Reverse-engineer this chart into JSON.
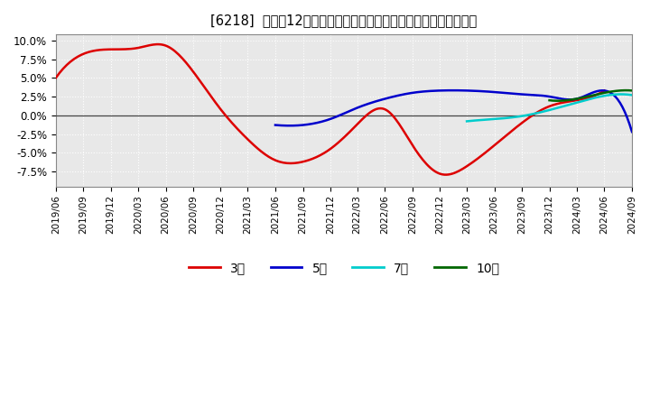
{
  "title": "[6218]  売上高12か月移動合計の対前年同期増減率の平均値の推移",
  "ylim": [
    -0.095,
    0.108
  ],
  "yticks": [
    -0.075,
    -0.05,
    -0.025,
    0.0,
    0.025,
    0.05,
    0.075,
    0.1
  ],
  "yticklabels": [
    "-7.5%",
    "-5.0%",
    "-2.5%",
    "0.0%",
    "2.5%",
    "5.0%",
    "7.5%",
    "10.0%"
  ],
  "bg_color": "#ffffff",
  "plot_bg_color": "#e8e8e8",
  "grid_color": "#ffffff",
  "series": {
    "3yr": {
      "color": "#dd0000",
      "label": "3年",
      "points": [
        [
          "2019/06",
          0.05
        ],
        [
          "2019/09",
          0.082
        ],
        [
          "2019/12",
          0.088
        ],
        [
          "2020/03",
          0.09
        ],
        [
          "2020/06",
          0.093
        ],
        [
          "2020/09",
          0.058
        ],
        [
          "2020/12",
          0.008
        ],
        [
          "2021/03",
          -0.032
        ],
        [
          "2021/06",
          -0.06
        ],
        [
          "2021/09",
          -0.062
        ],
        [
          "2021/12",
          -0.045
        ],
        [
          "2022/03",
          -0.012
        ],
        [
          "2022/06",
          0.008
        ],
        [
          "2022/09",
          -0.04
        ],
        [
          "2022/12",
          -0.078
        ],
        [
          "2023/03",
          -0.068
        ],
        [
          "2023/06",
          -0.04
        ],
        [
          "2023/09",
          -0.01
        ],
        [
          "2023/12",
          0.012
        ],
        [
          "2024/03",
          0.02
        ],
        [
          "2024/06",
          0.033
        ]
      ]
    },
    "5yr": {
      "color": "#0000cc",
      "label": "5年",
      "points": [
        [
          "2021/06",
          -0.013
        ],
        [
          "2021/09",
          -0.013
        ],
        [
          "2021/12",
          -0.005
        ],
        [
          "2022/03",
          0.01
        ],
        [
          "2022/06",
          0.022
        ],
        [
          "2022/09",
          0.03
        ],
        [
          "2022/12",
          0.033
        ],
        [
          "2023/03",
          0.033
        ],
        [
          "2023/06",
          0.031
        ],
        [
          "2023/09",
          0.028
        ],
        [
          "2023/12",
          0.025
        ],
        [
          "2024/03",
          0.022
        ],
        [
          "2024/06",
          0.033
        ],
        [
          "2024/09",
          -0.022
        ]
      ]
    },
    "7yr": {
      "color": "#00cccc",
      "label": "7年",
      "points": [
        [
          "2023/03",
          -0.008
        ],
        [
          "2023/06",
          -0.005
        ],
        [
          "2023/09",
          -0.001
        ],
        [
          "2023/12",
          0.007
        ],
        [
          "2024/03",
          0.017
        ],
        [
          "2024/06",
          0.026
        ],
        [
          "2024/09",
          0.027
        ]
      ]
    },
    "10yr": {
      "color": "#006600",
      "label": "10年",
      "points": [
        [
          "2023/12",
          0.02
        ],
        [
          "2024/03",
          0.022
        ],
        [
          "2024/06",
          0.03
        ],
        [
          "2024/09",
          0.033
        ]
      ]
    }
  },
  "x_tick_labels": [
    "2019/06",
    "2019/09",
    "2019/12",
    "2020/03",
    "2020/06",
    "2020/09",
    "2020/12",
    "2021/03",
    "2021/06",
    "2021/09",
    "2021/12",
    "2022/03",
    "2022/06",
    "2022/09",
    "2022/12",
    "2023/03",
    "2023/06",
    "2023/09",
    "2023/12",
    "2024/03",
    "2024/06",
    "2024/09"
  ],
  "legend_labels": [
    "3年",
    "5年",
    "7年",
    "10年"
  ],
  "legend_colors": [
    "#dd0000",
    "#0000cc",
    "#00cccc",
    "#006600"
  ]
}
